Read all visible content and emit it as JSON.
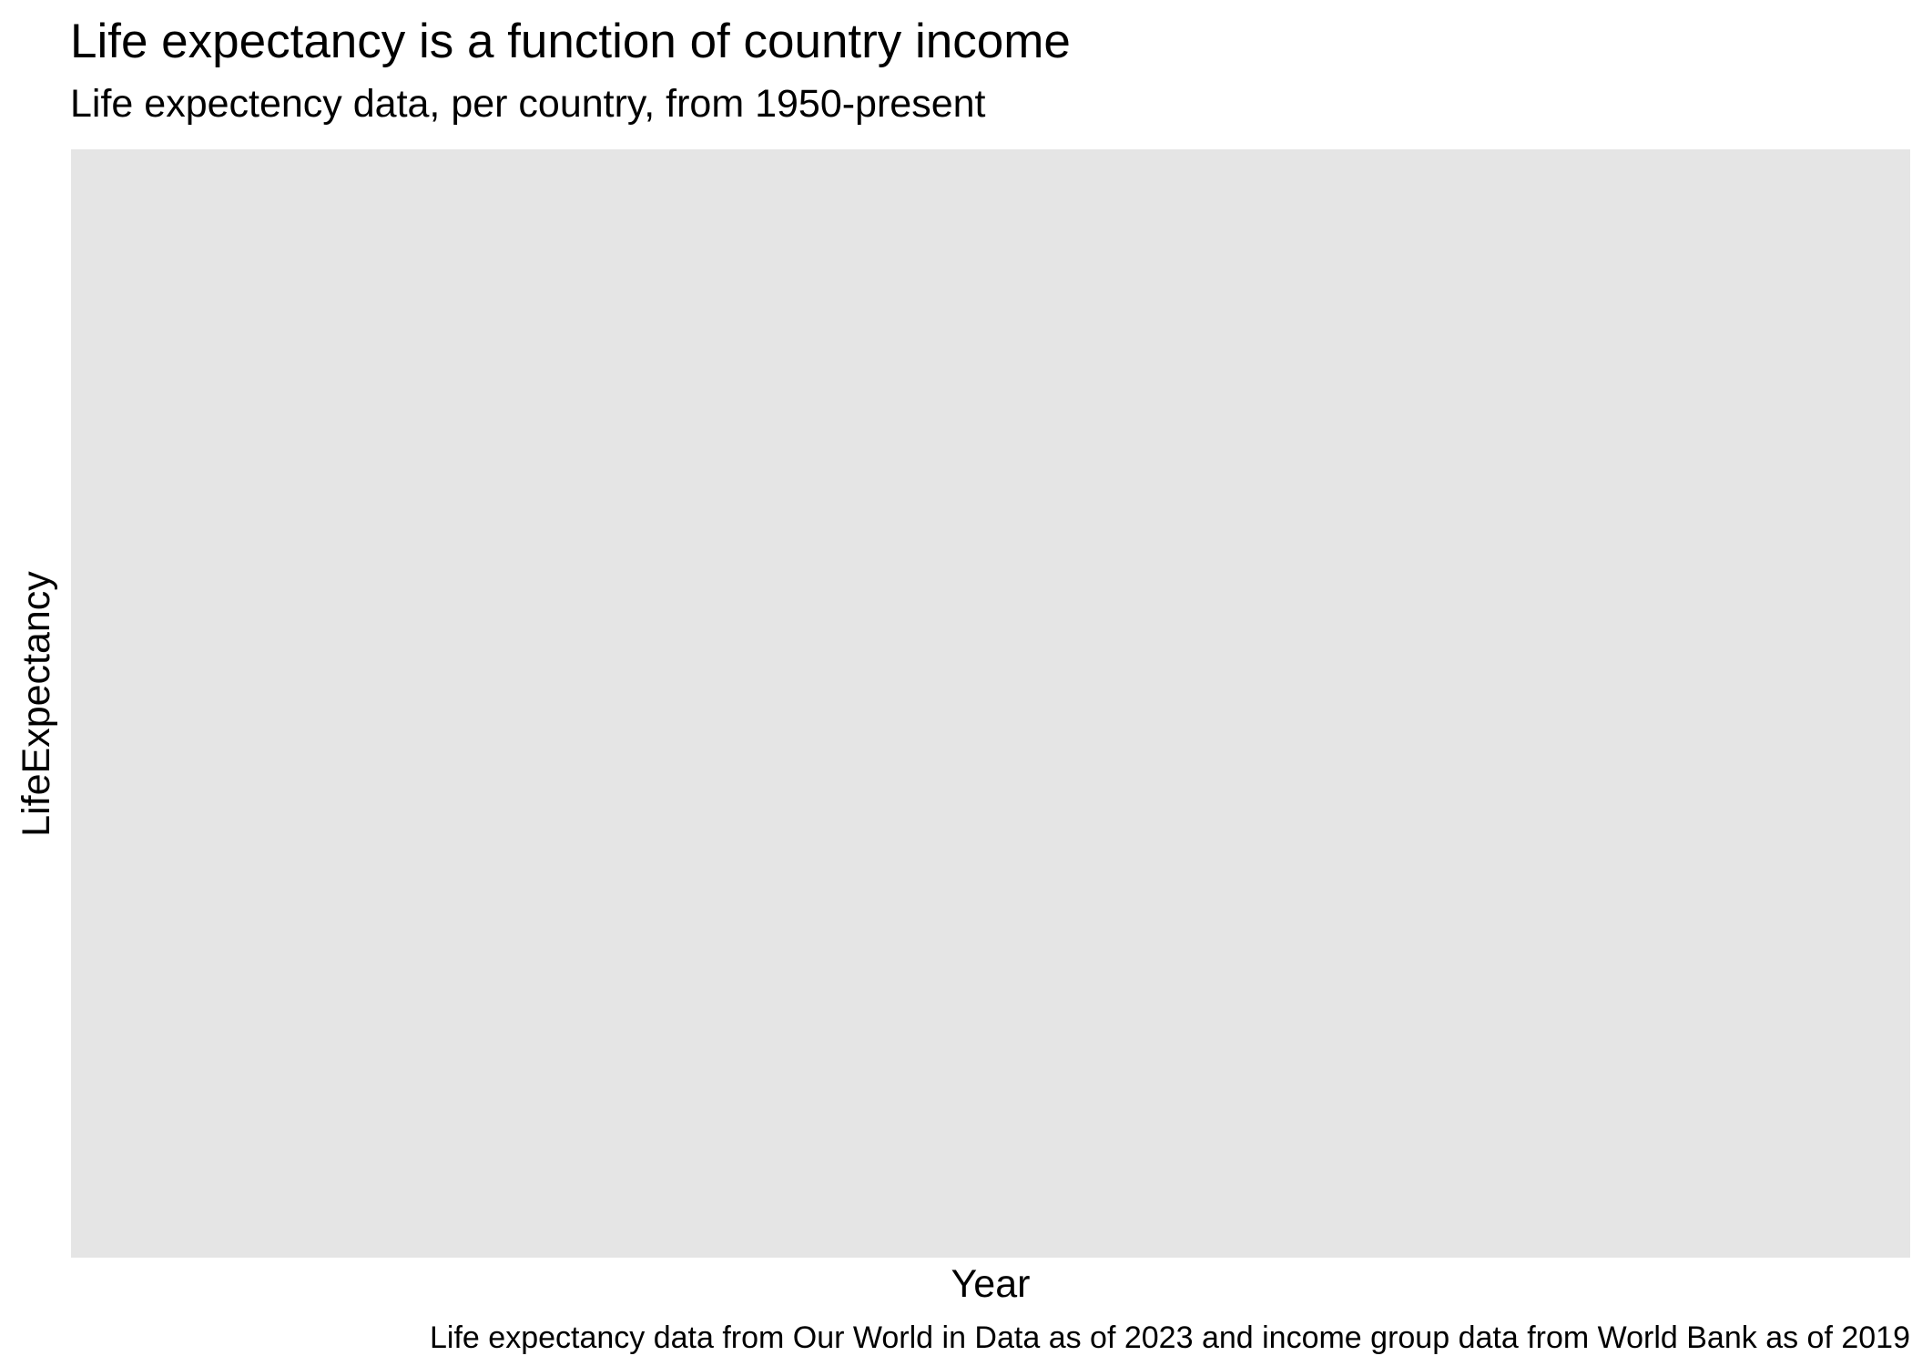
{
  "chart_data": {
    "type": "line",
    "title": "Life expectancy is a function of country income",
    "subtitle": "Life expectency data, per country, from 1950-present",
    "xlabel": "Year",
    "ylabel": "LifeExpectancy",
    "caption": "Life expectancy data from Our World in Data as of 2023 and income group data from World Bank as of 2019",
    "series": [],
    "x": [],
    "grid": false,
    "legend": "none",
    "panel_color": "#e5e5e5"
  }
}
